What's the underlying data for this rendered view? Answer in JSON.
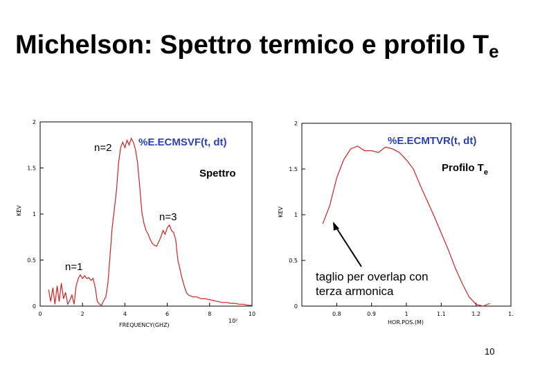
{
  "title": {
    "main": "Michelson: Spettro termico e profilo T",
    "sub": "e"
  },
  "page_number": "10",
  "colors": {
    "series": "#d02020",
    "label_blue": "#2a3fb0"
  },
  "chart_data": [
    {
      "type": "line",
      "xlabel": "FREQUENCY(GHZ)",
      "xlabel_exponent": "10²",
      "ylabel": "KEV",
      "xlim": [
        0,
        10
      ],
      "ylim": [
        0,
        2
      ],
      "xticks": [
        "0",
        "2",
        "4",
        "6",
        "8",
        "10"
      ],
      "yticks": [
        "0",
        "0.5",
        "1",
        "1.5",
        "2"
      ],
      "annotations": {
        "n2": "n=2",
        "n3": "n=3",
        "n1": "n=1",
        "signal": "%E.ECMSVF(t, dt)",
        "spettro": "Spettro"
      },
      "series": [
        {
          "x": [
            0.4,
            0.5,
            0.6,
            0.7,
            0.8,
            0.9,
            1.0,
            1.1,
            1.2,
            1.3,
            1.4,
            1.5,
            1.6,
            1.7,
            1.8,
            1.9,
            2.0,
            2.1,
            2.2,
            2.3,
            2.4,
            2.5,
            2.6,
            2.7,
            2.8,
            2.9,
            3.0,
            3.1,
            3.2,
            3.3,
            3.4,
            3.5,
            3.6,
            3.7,
            3.8,
            3.9,
            4.0,
            4.1,
            4.2,
            4.3,
            4.4,
            4.5,
            4.6,
            4.7,
            4.8,
            4.9,
            5.0,
            5.1,
            5.2,
            5.3,
            5.4,
            5.5,
            5.6,
            5.7,
            5.8,
            5.9,
            6.0,
            6.1,
            6.2,
            6.3,
            6.4,
            6.5,
            6.6,
            6.7,
            6.8,
            6.9,
            7.0,
            7.2,
            7.4,
            7.6,
            7.8,
            8.0,
            8.2,
            8.4,
            8.6,
            8.8,
            9.0,
            9.2,
            9.4,
            9.6,
            9.8,
            10.0
          ],
          "values": [
            0.18,
            0.05,
            0.2,
            0.02,
            0.22,
            0.05,
            0.25,
            0.08,
            0.15,
            0.02,
            0.06,
            0.12,
            0.02,
            0.22,
            0.3,
            0.34,
            0.3,
            0.33,
            0.3,
            0.31,
            0.28,
            0.3,
            0.2,
            0.05,
            0.02,
            0.01,
            0.06,
            0.1,
            0.25,
            0.55,
            0.85,
            1.05,
            1.25,
            1.55,
            1.72,
            1.78,
            1.72,
            1.8,
            1.75,
            1.82,
            1.78,
            1.7,
            1.55,
            1.3,
            1.02,
            0.9,
            0.82,
            0.78,
            0.72,
            0.68,
            0.66,
            0.65,
            0.7,
            0.75,
            0.82,
            0.78,
            0.85,
            0.88,
            0.82,
            0.8,
            0.72,
            0.5,
            0.4,
            0.3,
            0.22,
            0.15,
            0.12,
            0.1,
            0.1,
            0.08,
            0.08,
            0.07,
            0.06,
            0.05,
            0.04,
            0.04,
            0.03,
            0.03,
            0.02,
            0.02,
            0.01,
            0.01
          ]
        }
      ]
    },
    {
      "type": "line",
      "xlabel": "HOR.POS.(M)",
      "ylabel": "KEV",
      "xlim": [
        0.7,
        1.3
      ],
      "ylim": [
        0,
        2
      ],
      "xticks": [
        "0.8",
        "0.9",
        "1",
        "1.1",
        "1.2",
        "1."
      ],
      "yticks": [
        "0",
        "0.5",
        "1",
        "1.5",
        "2"
      ],
      "annotations": {
        "signal": "%E.ECMTVR(t, dt)",
        "profile": "Profilo T",
        "profile_sub": "e",
        "cut_note_line1": "taglio per overlap con",
        "cut_note_line2": "terza armonica"
      },
      "series": [
        {
          "x": [
            0.76,
            0.78,
            0.8,
            0.82,
            0.84,
            0.86,
            0.88,
            0.9,
            0.92,
            0.94,
            0.96,
            0.98,
            1.0,
            1.02,
            1.04,
            1.06,
            1.08,
            1.1,
            1.12,
            1.14,
            1.16,
            1.18,
            1.2,
            1.22,
            1.24
          ],
          "values": [
            0.9,
            1.1,
            1.4,
            1.6,
            1.72,
            1.75,
            1.7,
            1.7,
            1.68,
            1.74,
            1.72,
            1.68,
            1.6,
            1.5,
            1.32,
            1.15,
            0.98,
            0.8,
            0.62,
            0.42,
            0.25,
            0.1,
            0.02,
            0.0,
            0.03
          ]
        }
      ]
    }
  ]
}
